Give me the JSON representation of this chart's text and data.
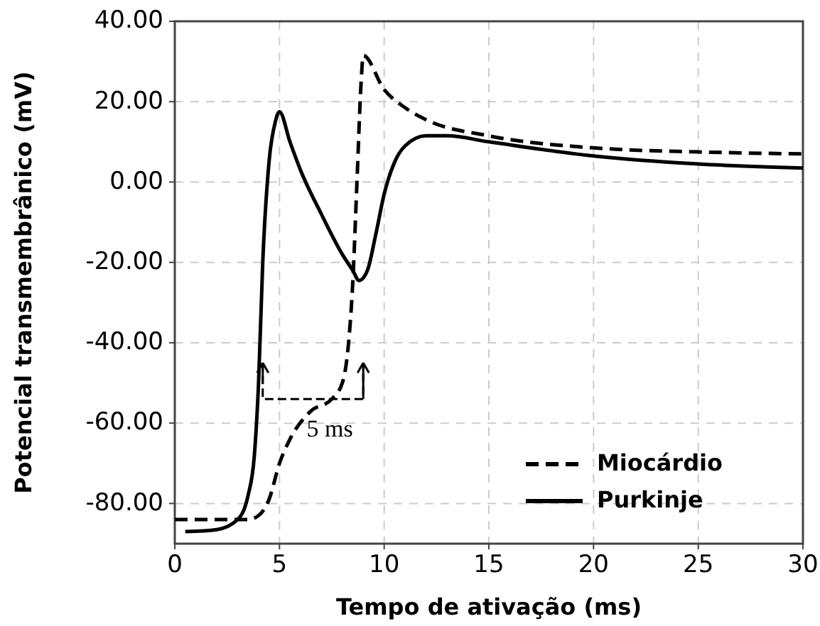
{
  "chart_data": {
    "type": "line",
    "xlabel": "Tempo de ativação (ms)",
    "ylabel": "Potencial transmembrânico (mV)",
    "xlim": [
      0,
      30
    ],
    "xticks": [
      0,
      5,
      10,
      15,
      20,
      25,
      30
    ],
    "ylim": [
      -90,
      40
    ],
    "yticks": [
      {
        "value": 40,
        "label": "40.00"
      },
      {
        "value": 20,
        "label": "20.00"
      },
      {
        "value": 0,
        "label": "0.00"
      },
      {
        "value": -20,
        "label": "-20.00"
      },
      {
        "value": -40,
        "label": "-40.00"
      },
      {
        "value": -60,
        "label": "-60.00"
      },
      {
        "value": -80,
        "label": "-80.00"
      }
    ],
    "grid": true,
    "legend": "bottom right",
    "annotations": [
      "5 ms"
    ],
    "series": [
      {
        "name": "Miocárdio",
        "color": "#000000",
        "line_style": "dashed",
        "x": [
          0,
          3.5,
          4,
          4.5,
          5,
          5.5,
          6.5,
          7.5,
          8,
          8.3,
          8.5,
          8.7,
          8.9,
          9,
          10,
          11,
          12,
          15,
          20,
          25,
          30
        ],
        "values": [
          -84,
          -84,
          -83,
          -79,
          -70,
          -64,
          -57,
          -54,
          -50,
          -40,
          -25,
          0,
          25,
          31.5,
          23,
          18.5,
          15.5,
          11.5,
          8.5,
          7.5,
          7
        ]
      },
      {
        "name": "Purkinje",
        "color": "#000000",
        "line_style": "solid",
        "x": [
          0.5,
          2,
          3,
          3.5,
          3.8,
          4,
          4.2,
          4.5,
          4.8,
          5,
          5.5,
          6,
          7,
          8,
          8.5,
          8.8,
          9.2,
          9.6,
          10,
          10.5,
          11,
          12,
          13,
          15,
          20,
          25,
          30
        ],
        "values": [
          -87,
          -86.5,
          -84,
          -78,
          -68,
          -50,
          -20,
          5,
          15,
          17.5,
          10,
          3,
          -8,
          -18,
          -22,
          -24.5,
          -22,
          -13,
          -3,
          5,
          9,
          11.5,
          11.5,
          10,
          6.5,
          4.5,
          3.5
        ]
      }
    ]
  }
}
